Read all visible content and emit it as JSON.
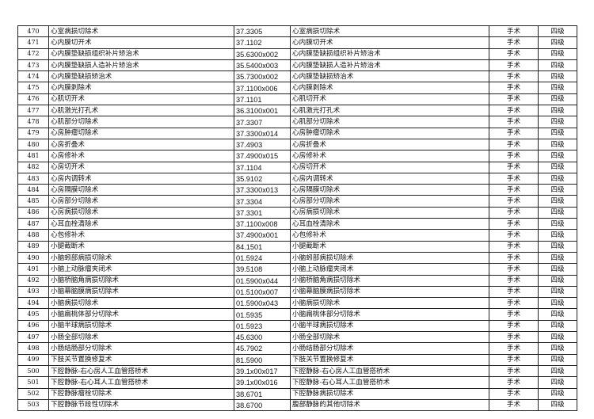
{
  "rows": [
    [
      "470",
      "心室病损切除术",
      "37.3305",
      "心室病损切除术",
      "手术",
      "四级"
    ],
    [
      "471",
      "心内膜切开术",
      "37.1102",
      "心内膜切开术",
      "手术",
      "四级"
    ],
    [
      "472",
      "心内膜垫缺损组织补片矫治术",
      "35.6300x002",
      "心内膜垫缺损组织补片矫治术",
      "手术",
      "四级"
    ],
    [
      "473",
      "心内膜垫缺损人造补片矫治术",
      "35.5400x003",
      "心内膜垫缺损人造补片矫治术",
      "手术",
      "四级"
    ],
    [
      "474",
      "心内膜垫缺损矫治术",
      "35.7300x002",
      "心内膜垫缺损矫治术",
      "手术",
      "四级"
    ],
    [
      "475",
      "心内膜剥除术",
      "37.1100x006",
      "心内膜剥除术",
      "手术",
      "四级"
    ],
    [
      "476",
      "心肌切开术",
      "37.1101",
      "心肌切开术",
      "手术",
      "四级"
    ],
    [
      "477",
      "心肌激光打孔术",
      "36.3100x001",
      "心肌激光打孔术",
      "手术",
      "四级"
    ],
    [
      "478",
      "心肌部分切除术",
      "37.3307",
      "心肌部分切除术",
      "手术",
      "四级"
    ],
    [
      "479",
      "心房肿瘤切除术",
      "37.3300x014",
      "心房肿瘤切除术",
      "手术",
      "四级"
    ],
    [
      "480",
      "心房折叠术",
      "37.4903",
      "心房折叠术",
      "手术",
      "四级"
    ],
    [
      "481",
      "心房修补术",
      "37.4900x015",
      "心房修补术",
      "手术",
      "四级"
    ],
    [
      "482",
      "心房切开术",
      "37.1104",
      "心房切开术",
      "手术",
      "四级"
    ],
    [
      "483",
      "心房内调转术",
      "35.9102",
      "心房内调转术",
      "手术",
      "四级"
    ],
    [
      "484",
      "心房隔膜切除术",
      "37.3300x013",
      "心房隔膜切除术",
      "手术",
      "四级"
    ],
    [
      "485",
      "心房部分切除术",
      "37.3304",
      "心房部分切除术",
      "手术",
      "四级"
    ],
    [
      "486",
      "心房病损切除术",
      "37.3301",
      "心房病损切除术",
      "手术",
      "四级"
    ],
    [
      "487",
      "心耳血栓清除术",
      "37.1100x008",
      "心耳血栓清除术",
      "手术",
      "四级"
    ],
    [
      "488",
      "心包修补术",
      "37.4900x001",
      "心包修补术",
      "手术",
      "四级"
    ],
    [
      "489",
      "小腿截断术",
      "84.1501",
      "小腿截断术",
      "手术",
      "四级"
    ],
    [
      "490",
      "小脑蚓部病损切除术",
      "01.5924",
      "小脑蚓部病损切除术",
      "手术",
      "四级"
    ],
    [
      "491",
      "小脑上动脉瘤夹闭术",
      "39.5108",
      "小脑上动脉瘤夹闭术",
      "手术",
      "四级"
    ],
    [
      "492",
      "小脑桥脑角病损切除术",
      "01.5900x044",
      "小脑桥脑角病损切除术",
      "手术",
      "四级"
    ],
    [
      "493",
      "小脑幕脑膜病损切除术",
      "01.5100x007",
      "小脑幕脑膜病损切除术",
      "手术",
      "四级"
    ],
    [
      "494",
      "小脑病损切除术",
      "01.5900x043",
      "小脑病损切除术",
      "手术",
      "四级"
    ],
    [
      "495",
      "小脑扁桃体部分切除术",
      "01.5935",
      "小脑扁桃体部分切除术",
      "手术",
      "四级"
    ],
    [
      "496",
      "小脑半球病损切除术",
      "01.5923",
      "小脑半球病损切除术",
      "手术",
      "四级"
    ],
    [
      "497",
      "小肠全部切除术",
      "45.6300",
      "小肠全部切除术",
      "手术",
      "四级"
    ],
    [
      "498",
      "小肠结肠部分切除术",
      "45.7902",
      "小肠结肠部分切除术",
      "手术",
      "四级"
    ],
    [
      "499",
      "下肢关节置换修复术",
      "81.5900",
      "下肢关节置换修复术",
      "手术",
      "四级"
    ],
    [
      "500",
      "下腔静脉-右心房人工血管搭桥术",
      "39.1x00x017",
      "下腔静脉-右心房人工血管搭桥术",
      "手术",
      "四级"
    ],
    [
      "501",
      "下腔静脉-右心耳人工血管搭桥术",
      "39.1x00x016",
      "下腔静脉-右心耳人工血管搭桥术",
      "手术",
      "四级"
    ],
    [
      "502",
      "下腔静脉瘤栓切除术",
      "38.6701",
      "下腔静脉病损切除术",
      "手术",
      "四级"
    ],
    [
      "503",
      "下腔静脉节段性切除术",
      "38.6700",
      "腹部静脉的其他切除术",
      "手术",
      "四级"
    ]
  ]
}
